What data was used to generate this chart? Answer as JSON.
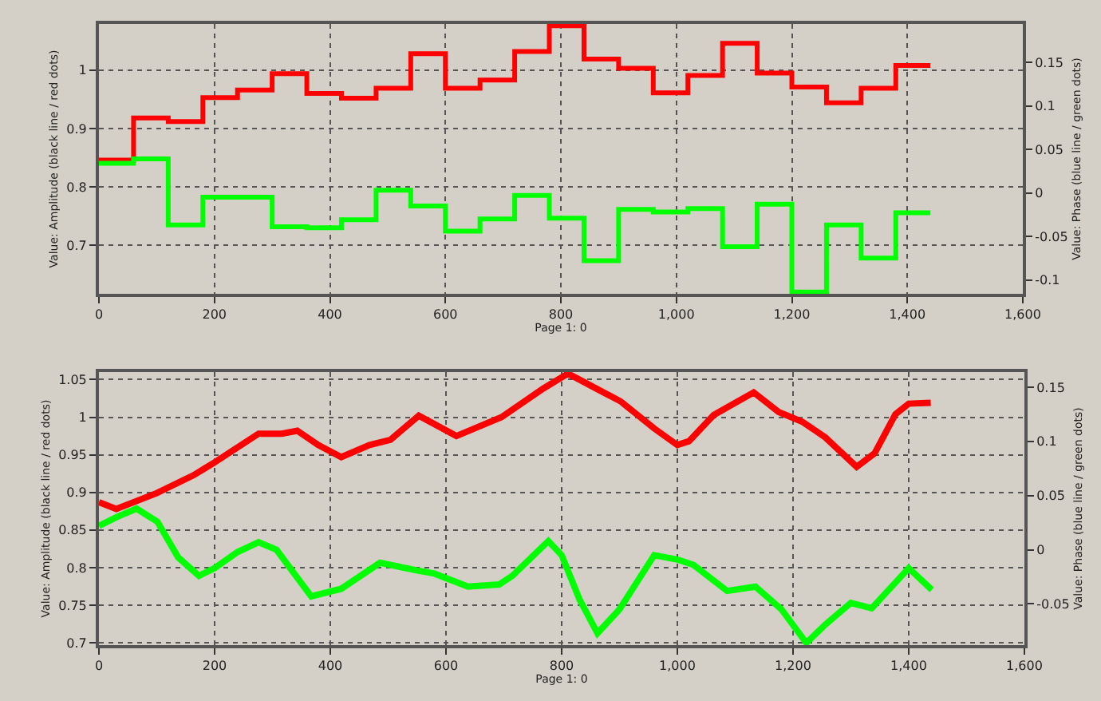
{
  "chart_data": [
    {
      "type": "step",
      "xlabel": "Page 1: 0",
      "ylabel": "Value: Amplitude (black line / red dots)",
      "y2label": "Value: Phase (blue line / green dots)",
      "x": [
        0,
        60,
        120,
        180,
        240,
        300,
        360,
        420,
        480,
        540,
        600,
        660,
        720,
        780,
        840,
        900,
        960,
        1020,
        1080,
        1140,
        1200,
        1260,
        1320,
        1380,
        1440
      ],
      "xlim": [
        0,
        1600
      ],
      "xticks": [
        0,
        200,
        400,
        600,
        800,
        {
          "value": 1000,
          "label": "1,000"
        },
        {
          "value": 1200,
          "label": "1,200"
        },
        {
          "value": 1400,
          "label": "1,400"
        },
        {
          "value": 1600,
          "label": "1,600"
        }
      ],
      "ylim": [
        0.617,
        1.079
      ],
      "yticks": [
        0.7,
        0.8,
        0.9,
        1
      ],
      "y2lim": [
        -0.116,
        0.194
      ],
      "y2ticks": [
        -0.1,
        -0.05,
        0,
        0.05,
        0.1,
        0.15
      ],
      "grid": true,
      "series": [
        {
          "color": "#ff0000",
          "values": [
            0.846,
            0.918,
            0.912,
            0.953,
            0.966,
            0.994,
            0.96,
            0.952,
            0.969,
            1.028,
            0.969,
            0.983,
            1.032,
            1.076,
            1.019,
            1.003,
            0.961,
            0.991,
            1.046,
            0.995,
            0.971,
            0.944,
            0.969,
            1.008,
            1.008
          ]
        },
        {
          "color": "#00ff00",
          "axis": "y2",
          "values": [
            0.034,
            0.039,
            -0.037,
            -0.005,
            -0.005,
            -0.039,
            -0.04,
            -0.031,
            0.003,
            -0.015,
            -0.044,
            -0.03,
            -0.003,
            -0.029,
            -0.078,
            -0.019,
            -0.022,
            -0.018,
            -0.062,
            -0.013,
            -0.114,
            -0.037,
            -0.075,
            -0.023,
            -0.023
          ]
        }
      ]
    },
    {
      "type": "line",
      "xlabel": "Page 1: 0",
      "ylabel": "Value: Amplitude (black line / red dots)",
      "y2label": "Value: Phase (blue line / green dots)",
      "xlim": [
        0,
        1600
      ],
      "xticks": [
        0,
        200,
        400,
        600,
        800,
        {
          "value": 1000,
          "label": "1,000"
        },
        {
          "value": 1200,
          "label": "1,200"
        },
        {
          "value": 1400,
          "label": "1,400"
        },
        {
          "value": 1600,
          "label": "1,600"
        }
      ],
      "ylim": [
        0.697,
        1.06
      ],
      "yticks": [
        0.7,
        0.75,
        0.8,
        0.85,
        0.9,
        0.95,
        1,
        1.05
      ],
      "y2lim": [
        -0.088,
        0.164
      ],
      "y2ticks": [
        -0.05,
        0,
        0.05,
        0.1,
        0.15
      ],
      "grid": true,
      "series": [
        {
          "color": "#ff0000",
          "x": [
            0,
            30,
            100,
            164,
            200,
            276,
            316,
            343,
            379,
            419,
            468,
            504,
            553,
            618,
            696,
            768,
            811,
            865,
            902,
            960,
            1000,
            1020,
            1063,
            1132,
            1175,
            1216,
            1256,
            1310,
            1341,
            1377,
            1400,
            1438
          ],
          "values": [
            0.887,
            0.878,
            0.899,
            0.923,
            0.94,
            0.978,
            0.978,
            0.982,
            0.963,
            0.947,
            0.963,
            0.97,
            1.002,
            0.975,
            1.0,
            1.038,
            1.058,
            1.036,
            1.021,
            0.985,
            0.963,
            0.968,
            1.003,
            1.033,
            1.007,
            0.994,
            0.973,
            0.934,
            0.952,
            1.004,
            1.018,
            1.019
          ]
        },
        {
          "color": "#00ff00",
          "axis": "y2",
          "x": [
            0,
            30,
            65,
            101,
            137,
            173,
            200,
            240,
            276,
            307,
            367,
            419,
            486,
            549,
            580,
            638,
            692,
            715,
            777,
            800,
            831,
            862,
            900,
            960,
            1000,
            1028,
            1086,
            1135,
            1180,
            1223,
            1256,
            1300,
            1336,
            1400,
            1440
          ],
          "values": [
            0.022,
            0.03,
            0.038,
            0.026,
            -0.007,
            -0.024,
            -0.017,
            -0.002,
            0.007,
            0,
            -0.043,
            -0.036,
            -0.012,
            -0.019,
            -0.022,
            -0.034,
            -0.032,
            -0.024,
            0.008,
            -0.005,
            -0.046,
            -0.077,
            -0.055,
            -0.005,
            -0.009,
            -0.014,
            -0.038,
            -0.034,
            -0.055,
            -0.086,
            -0.069,
            -0.049,
            -0.054,
            -0.017,
            -0.037
          ]
        }
      ]
    }
  ]
}
